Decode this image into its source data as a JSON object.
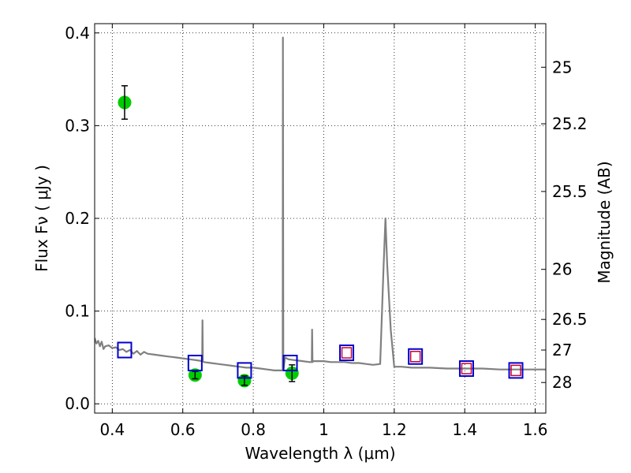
{
  "chart_data": {
    "type": "scatter",
    "title": "",
    "xlabel": "Wavelength  λ (μm)",
    "ylabel": "Flux  Fν  ( μJy )",
    "y2label": "Magnitude (AB)",
    "xlim": [
      0.35,
      1.63
    ],
    "ylim": [
      -0.01,
      0.41
    ],
    "x_ticks": [
      0.4,
      0.6,
      0.8,
      1.0,
      1.2,
      1.4,
      1.6
    ],
    "x_tick_labels": [
      "0.4",
      "0.6",
      "0.8",
      "1",
      "1.2",
      "1.4",
      "1.6"
    ],
    "y_ticks": [
      0.0,
      0.1,
      0.2,
      0.3,
      0.4
    ],
    "y_tick_labels": [
      "0.0",
      "0.1",
      "0.2",
      "0.3",
      "0.4"
    ],
    "y2_ticks": [
      {
        "label": "25",
        "flux": 0.363
      },
      {
        "label": "25.2",
        "flux": 0.302
      },
      {
        "label": "25.5",
        "flux": 0.229
      },
      {
        "label": "26",
        "flux": 0.145
      },
      {
        "label": "26.5",
        "flux": 0.091
      },
      {
        "label": "27",
        "flux": 0.058
      },
      {
        "label": "28",
        "flux": 0.023
      }
    ],
    "grid": true,
    "colors": {
      "model": "#808080",
      "observed": "#00cc00",
      "model_photometry": "#0000cc",
      "upper": "#cc0033",
      "error_bar": "#000000"
    },
    "series": [
      {
        "role": "model_spectrum",
        "style": "line",
        "x": [
          0.35,
          0.355,
          0.36,
          0.365,
          0.37,
          0.375,
          0.38,
          0.39,
          0.4,
          0.41,
          0.42,
          0.43,
          0.44,
          0.45,
          0.46,
          0.47,
          0.48,
          0.49,
          0.5,
          0.52,
          0.54,
          0.56,
          0.58,
          0.6,
          0.62,
          0.64,
          0.655,
          0.656,
          0.657,
          0.66,
          0.68,
          0.7,
          0.72,
          0.74,
          0.76,
          0.78,
          0.8,
          0.82,
          0.84,
          0.86,
          0.875,
          0.8835,
          0.8842,
          0.8852,
          0.89,
          0.9,
          0.92,
          0.94,
          0.96,
          0.966,
          0.967,
          0.968,
          0.97,
          0.98,
          1.0,
          1.02,
          1.04,
          1.06,
          1.08,
          1.1,
          1.12,
          1.14,
          1.16,
          1.17,
          1.175,
          1.18,
          1.19,
          1.2,
          1.22,
          1.25,
          1.3,
          1.35,
          1.4,
          1.45,
          1.5,
          1.55,
          1.6,
          1.63
        ],
        "values": [
          0.071,
          0.065,
          0.068,
          0.062,
          0.067,
          0.059,
          0.062,
          0.063,
          0.06,
          0.061,
          0.058,
          0.059,
          0.056,
          0.058,
          0.054,
          0.057,
          0.053,
          0.056,
          0.054,
          0.053,
          0.052,
          0.051,
          0.05,
          0.049,
          0.048,
          0.047,
          0.046,
          0.09,
          0.046,
          0.045,
          0.044,
          0.043,
          0.042,
          0.041,
          0.04,
          0.039,
          0.039,
          0.038,
          0.037,
          0.036,
          0.036,
          0.036,
          0.395,
          0.036,
          0.05,
          0.048,
          0.047,
          0.046,
          0.045,
          0.045,
          0.08,
          0.045,
          0.046,
          0.046,
          0.046,
          0.045,
          0.045,
          0.045,
          0.044,
          0.044,
          0.043,
          0.042,
          0.043,
          0.15,
          0.2,
          0.15,
          0.08,
          0.04,
          0.04,
          0.039,
          0.039,
          0.038,
          0.038,
          0.038,
          0.037,
          0.037,
          0.037,
          0.037
        ]
      },
      {
        "role": "observed_photometry",
        "style": "circle",
        "x": [
          0.435,
          0.635,
          0.775,
          0.91
        ],
        "values": [
          0.325,
          0.031,
          0.025,
          0.033
        ],
        "err": [
          0.018,
          0.004,
          0.005,
          0.009
        ]
      },
      {
        "role": "model_photometry",
        "style": "square",
        "x": [
          0.435,
          0.635,
          0.775,
          0.905,
          1.065,
          1.26,
          1.405,
          1.545
        ],
        "values": [
          0.058,
          0.044,
          0.036,
          0.044,
          0.055,
          0.051,
          0.038,
          0.036
        ]
      },
      {
        "role": "upper_limits",
        "style": "square",
        "x": [
          1.065,
          1.26,
          1.405,
          1.545
        ],
        "values": [
          0.055,
          0.051,
          0.038,
          0.036
        ]
      }
    ]
  }
}
